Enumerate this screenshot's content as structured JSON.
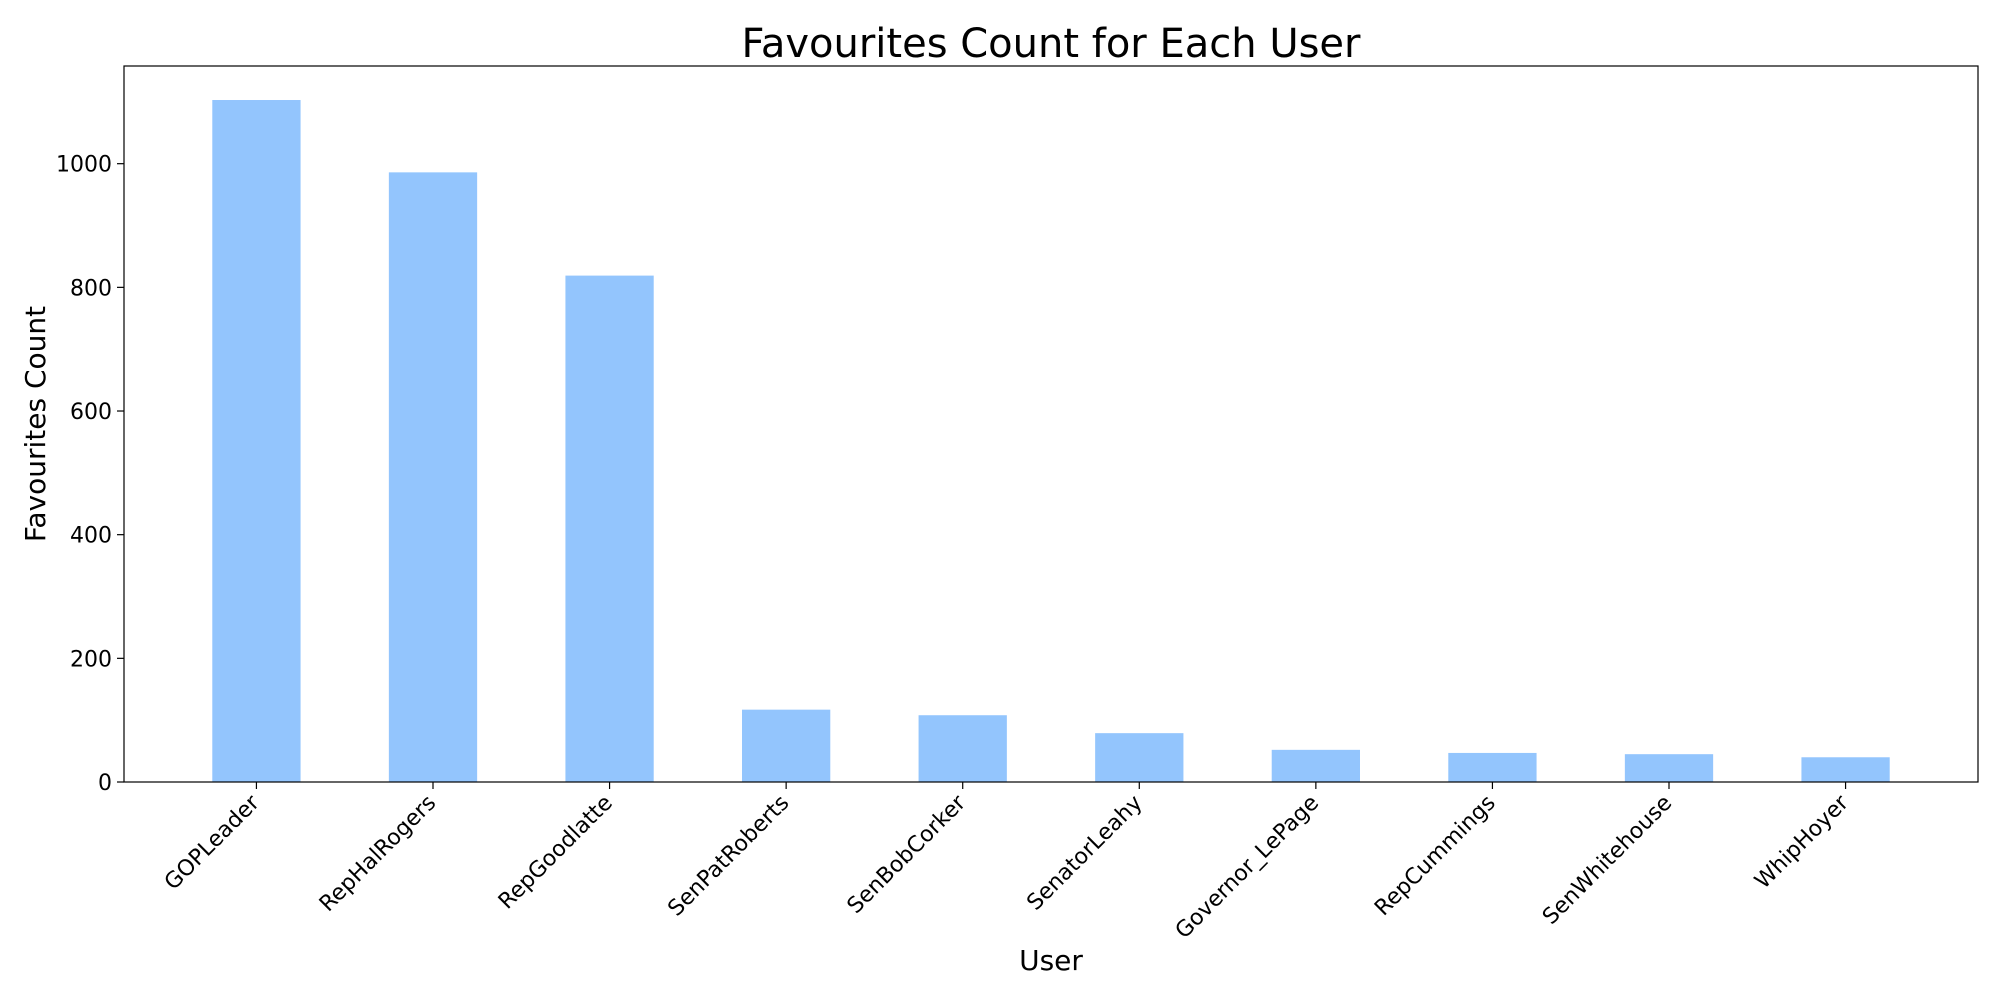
{
  "chart_data": {
    "type": "bar",
    "title": "Favourites Count for Each User",
    "xlabel": "User",
    "ylabel": "Favourites Count",
    "categories": [
      "GOPLeader",
      "RepHalRogers",
      "RepGoodlatte",
      "SenPatRoberts",
      "SenBobCorker",
      "SenatorLeahy",
      "Governor_LePage",
      "RepCummings",
      "SenWhitehouse",
      "WhipHoyer"
    ],
    "values": [
      1103,
      986,
      819,
      117,
      108,
      79,
      52,
      47,
      45,
      40
    ],
    "yticks": [
      "0",
      "200",
      "400",
      "600",
      "800",
      "1000"
    ],
    "ylim": [
      0,
      1158
    ],
    "bar_color": "#93c5fd",
    "grid": false,
    "legend": "none"
  }
}
